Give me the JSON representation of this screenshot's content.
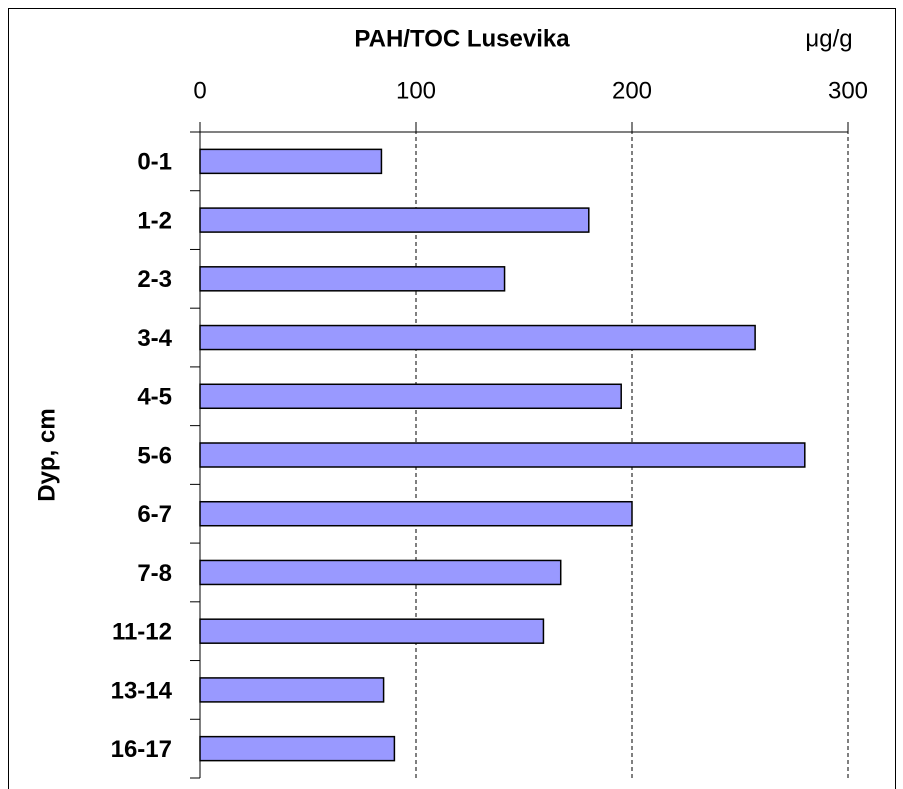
{
  "chart_data": {
    "type": "bar",
    "orientation": "horizontal",
    "title": "PAH/TOC Lusevika",
    "unit_label": "μg/g",
    "y_axis_label": "Dyp, cm",
    "categories": [
      "0-1",
      "1-2",
      "2-3",
      "3-4",
      "4-5",
      "5-6",
      "6-7",
      "7-8",
      "11-12",
      "13-14",
      "16-17"
    ],
    "values": [
      84,
      180,
      141,
      257,
      195,
      280,
      200,
      167,
      159,
      85,
      90
    ],
    "color": "#9999ff",
    "xlim": [
      0,
      300
    ],
    "xticks": [
      0,
      100,
      200,
      300
    ],
    "grid": true
  }
}
